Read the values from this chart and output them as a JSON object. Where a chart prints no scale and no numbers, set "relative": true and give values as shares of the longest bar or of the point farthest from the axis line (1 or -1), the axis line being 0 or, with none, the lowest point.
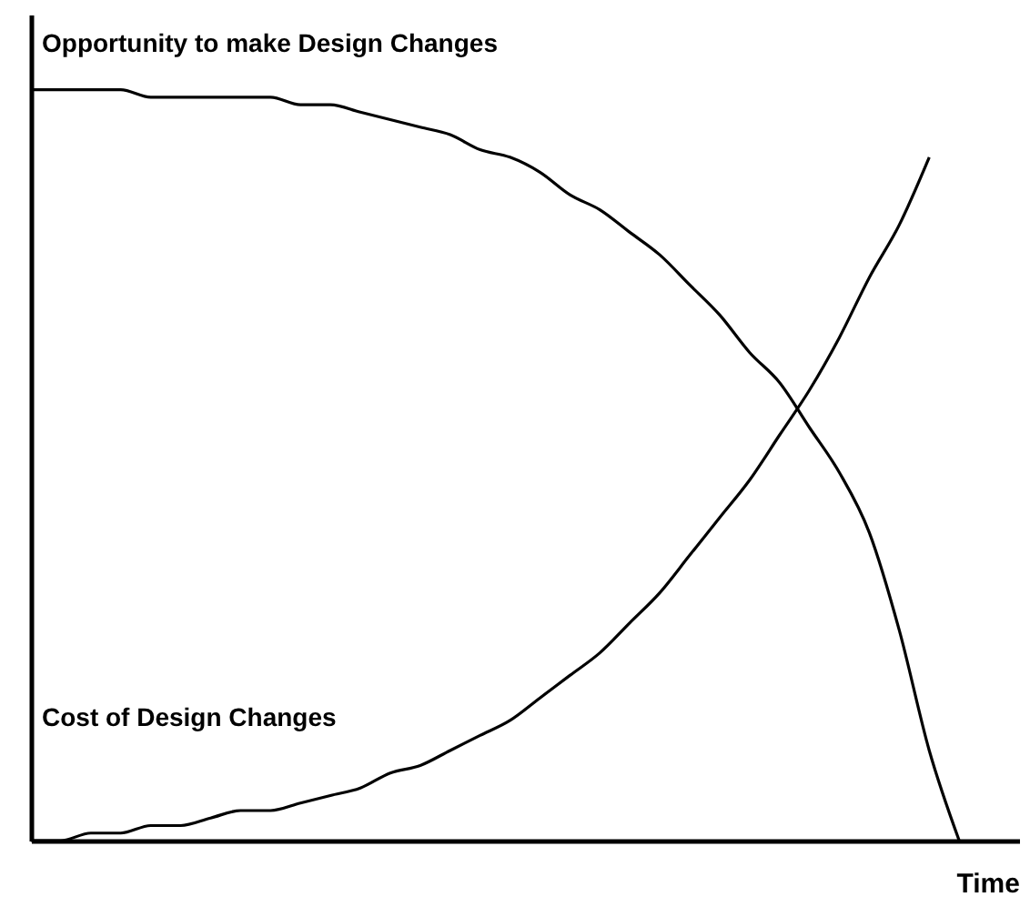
{
  "chart_data": {
    "type": "line",
    "relative": true,
    "xlabel": "Time",
    "categories": [
      null,
      null,
      null,
      null,
      null,
      null,
      null,
      null,
      null,
      null,
      null,
      null,
      null,
      null,
      null,
      null,
      null,
      null,
      null,
      null,
      null,
      null,
      null,
      null,
      null,
      null,
      null,
      null,
      null,
      null,
      null,
      null,
      null,
      null
    ],
    "series": [
      {
        "name": "Opportunity to make Design Changes",
        "color": "#000000",
        "values": [
          1.0,
          1.0,
          1.0,
          1.0,
          0.99,
          0.99,
          0.99,
          0.99,
          0.99,
          0.98,
          0.98,
          0.97,
          0.96,
          0.95,
          0.94,
          0.92,
          0.91,
          0.89,
          0.86,
          0.84,
          0.81,
          0.78,
          0.74,
          0.7,
          0.65,
          0.61,
          0.55,
          0.49,
          0.41,
          0.28,
          0.12,
          0,
          null,
          null
        ]
      },
      {
        "name": "Cost of Design Changes",
        "color": "#000000",
        "values": [
          0,
          0.0,
          0.01,
          0.01,
          0.02,
          0.02,
          0.03,
          0.04,
          0.04,
          0.05,
          0.06,
          0.07,
          0.09,
          0.1,
          0.12,
          0.14,
          0.16,
          0.19,
          0.22,
          0.25,
          0.29,
          0.33,
          0.38,
          0.43,
          0.48,
          0.54,
          0.6,
          0.67,
          0.75,
          0.82,
          0.91,
          null,
          null,
          null
        ]
      }
    ]
  }
}
